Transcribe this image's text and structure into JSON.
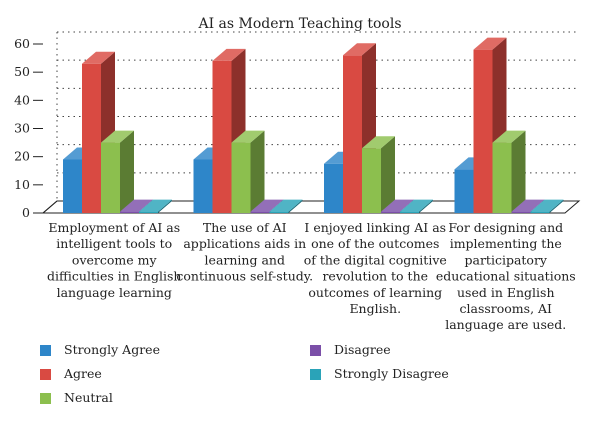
{
  "chart_data": {
    "type": "bar",
    "title": "AI as Modern Teaching tools",
    "xlabel": "",
    "ylabel": "",
    "ylim": [
      0,
      60
    ],
    "yticks": [
      0,
      10,
      20,
      30,
      40,
      50,
      60
    ],
    "grid": true,
    "legend_position": "bottom",
    "categories": [
      [
        "Employment of AI as",
        "intelligent tools to",
        "overcome my",
        "difficulties in English",
        "language learning"
      ],
      [
        "The use of AI",
        "applications aids in",
        "learning and",
        "continuous self-study."
      ],
      [
        "I enjoyed linking AI as",
        "one of the outcomes",
        "of the digital cognitive",
        "revolution to the",
        "outcomes of learning",
        "English."
      ],
      [
        "For designing and",
        "implementing the",
        "participatory",
        "educational situations",
        "used in English",
        "classrooms, AI",
        "language are used."
      ]
    ],
    "series": [
      {
        "name": "Strongly Agree",
        "color": "#2e86c9",
        "values": [
          19,
          19,
          17.5,
          15.5
        ]
      },
      {
        "name": "Agree",
        "color": "#d94a42",
        "values": [
          53,
          54,
          56,
          58
        ]
      },
      {
        "name": "Neutral",
        "color": "#8cbf4e",
        "values": [
          25,
          25,
          23,
          25
        ]
      },
      {
        "name": "Disagree",
        "color": "#7b4fa8",
        "values": [
          0.5,
          0.5,
          0.5,
          0.5
        ]
      },
      {
        "name": "Strongly Disagree",
        "color": "#2aa3b8",
        "values": [
          0.5,
          0.5,
          0.5,
          0.5
        ]
      }
    ]
  }
}
